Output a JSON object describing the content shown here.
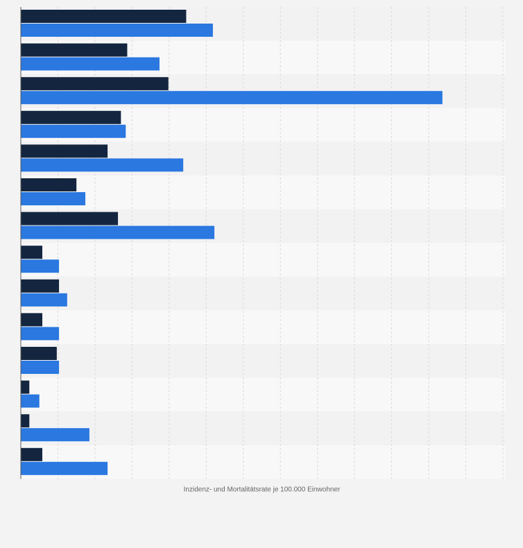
{
  "chart_data": {
    "type": "bar",
    "orientation": "horizontal",
    "title": "",
    "xlabel": "Inzidenz- und Mortalitätsrate je 100.000 Einwohner",
    "ylabel": "",
    "categories": [
      "",
      "",
      "",
      "",
      "",
      "",
      "",
      "",
      "",
      "",
      "",
      "",
      "",
      ""
    ],
    "xlim": [
      0,
      130
    ],
    "grid": true,
    "legend": "none",
    "series": [
      {
        "values": [
          44.6,
          28.7,
          39.8,
          27.0,
          23.4,
          15.0,
          26.2,
          5.8,
          10.3,
          5.8,
          9.7,
          2.3,
          2.3,
          5.8
        ]
      },
      {
        "values": [
          51.8,
          37.4,
          113.7,
          28.3,
          43.8,
          17.4,
          52.2,
          10.3,
          12.5,
          10.3,
          10.3,
          5.0,
          18.5,
          23.4
        ]
      }
    ],
    "colors": {
      "series": [
        "#14263f",
        "#2a78e0"
      ],
      "band_dark": "#f2f2f3",
      "band_light": "#f8f8f8",
      "grid": "#d9d9d9",
      "axis": "#5a5a5a",
      "page": "#f3f3f4"
    }
  }
}
